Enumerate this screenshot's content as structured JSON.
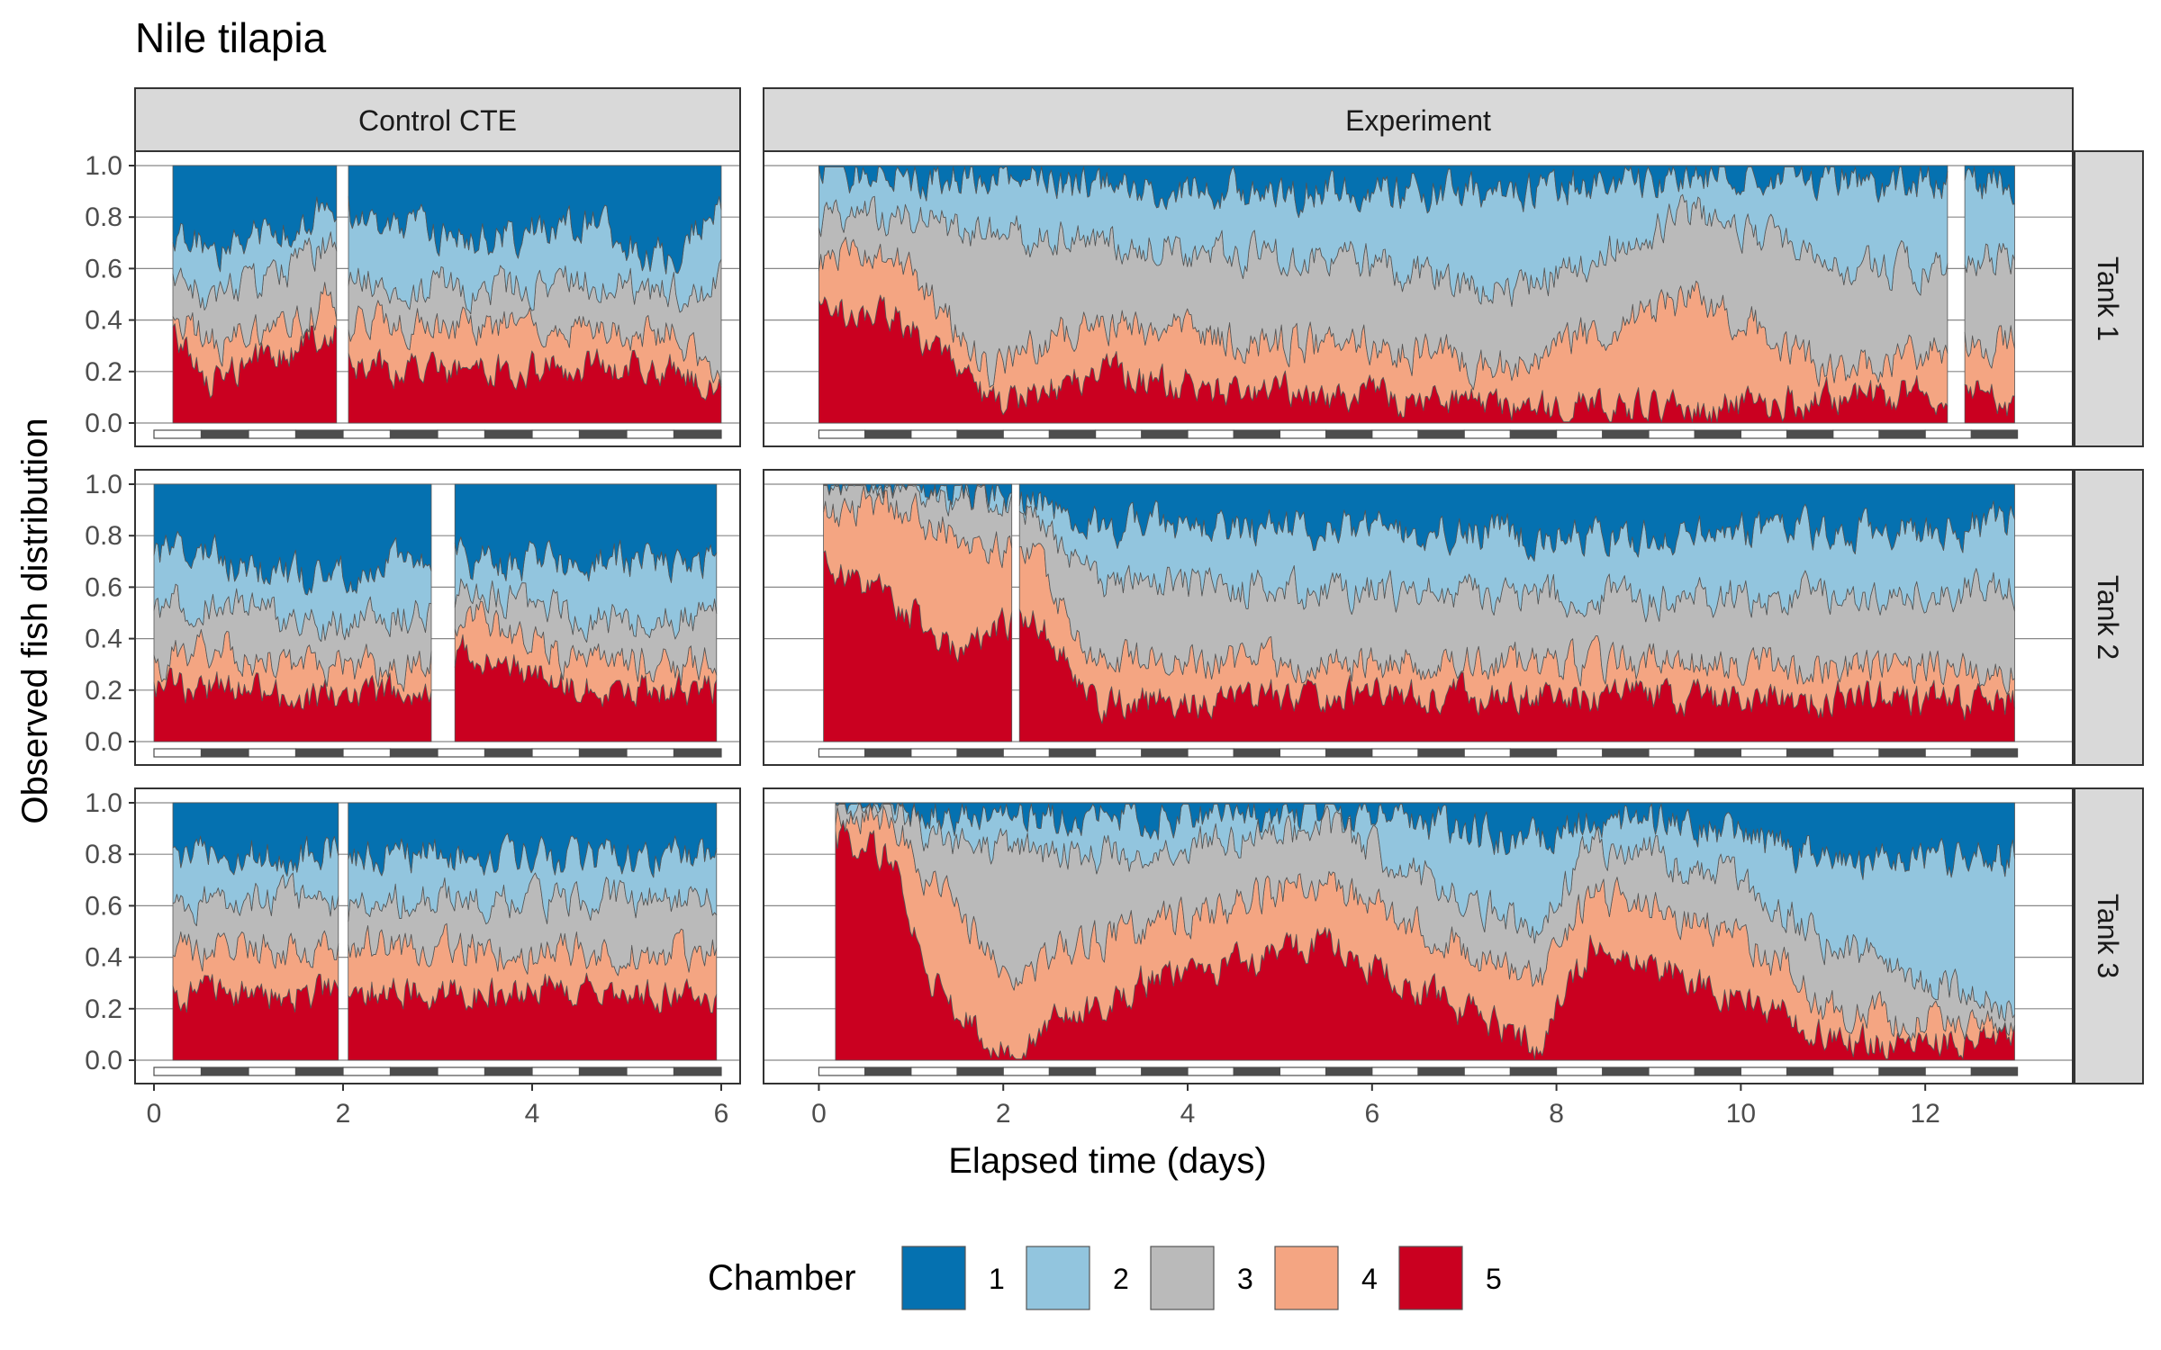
{
  "chart_data": {
    "type": "area",
    "stacked": true,
    "title": "Nile tilapia",
    "xlabel": "Elapsed time (days)",
    "ylabel": "Observed fish distribution",
    "ylim": [
      0,
      1
    ],
    "y_ticks": [
      "0.0",
      "0.2",
      "0.4",
      "0.6",
      "0.8",
      "1.0"
    ],
    "legend": {
      "title": "Chamber",
      "position": "bottom",
      "entries": [
        {
          "label": "1",
          "color": "#0571b0"
        },
        {
          "label": "2",
          "color": "#92c5de"
        },
        {
          "label": "3",
          "color": "#bababa"
        },
        {
          "label": "4",
          "color": "#f4a582"
        },
        {
          "label": "5",
          "color": "#ca0020"
        }
      ]
    },
    "columns": [
      {
        "label": "Control CTE",
        "xlim": [
          -0.2,
          6.2
        ],
        "x_ticks": [
          "0",
          "2",
          "4",
          "6"
        ],
        "x_tick_values": [
          0,
          2,
          4,
          6
        ],
        "light_dark_period_days": 0.5,
        "day_end": 6
      },
      {
        "label": "Experiment",
        "xlim": [
          -0.6,
          13.6
        ],
        "x_ticks": [
          "0",
          "2",
          "4",
          "6",
          "8",
          "10",
          "12"
        ],
        "x_tick_values": [
          0,
          2,
          4,
          6,
          8,
          10,
          12
        ],
        "light_dark_period_days": 0.5,
        "day_end": 13
      }
    ],
    "rows": [
      {
        "label": "Tank 1"
      },
      {
        "label": "Tank 2"
      },
      {
        "label": "Tank 3"
      }
    ],
    "panels": [
      {
        "row": 0,
        "col": 0,
        "t_start": 0.2,
        "t_end": 6.0,
        "gaps": [
          [
            1.94,
            2.04
          ]
        ],
        "cumulative_bounds_mean": [
          0.25,
          0.42,
          0.58,
          0.75
        ],
        "keyframes": [
          {
            "t": 0.2,
            "s": [
              0.35,
              0.45,
              0.55,
              0.72
            ]
          },
          {
            "t": 0.6,
            "s": [
              0.17,
              0.3,
              0.5,
              0.67
            ]
          },
          {
            "t": 1.5,
            "s": [
              0.28,
              0.38,
              0.6,
              0.78
            ]
          },
          {
            "t": 1.9,
            "s": [
              0.38,
              0.5,
              0.72,
              0.84
            ]
          },
          {
            "t": 2.1,
            "s": [
              0.22,
              0.38,
              0.55,
              0.77
            ]
          },
          {
            "t": 3.5,
            "s": [
              0.2,
              0.36,
              0.52,
              0.72
            ]
          },
          {
            "t": 4.6,
            "s": [
              0.22,
              0.38,
              0.55,
              0.77
            ]
          },
          {
            "t": 5.5,
            "s": [
              0.2,
              0.35,
              0.5,
              0.62
            ]
          },
          {
            "t": 5.95,
            "s": [
              0.12,
              0.2,
              0.55,
              0.88
            ]
          }
        ]
      },
      {
        "row": 0,
        "col": 1,
        "t_start": 0.0,
        "t_end": 12.97,
        "gaps": [
          [
            12.25,
            12.42
          ]
        ],
        "cumulative_bounds_mean": [
          0.13,
          0.33,
          0.68,
          0.93
        ],
        "keyframes": [
          {
            "t": 0.0,
            "s": [
              0.45,
              0.65,
              0.8,
              0.98
            ]
          },
          {
            "t": 0.9,
            "s": [
              0.4,
              0.62,
              0.8,
              0.95
            ]
          },
          {
            "t": 1.9,
            "s": [
              0.07,
              0.2,
              0.72,
              0.96
            ]
          },
          {
            "t": 3.0,
            "s": [
              0.2,
              0.4,
              0.72,
              0.92
            ]
          },
          {
            "t": 4.5,
            "s": [
              0.12,
              0.32,
              0.65,
              0.9
            ]
          },
          {
            "t": 6.0,
            "s": [
              0.1,
              0.3,
              0.62,
              0.9
            ]
          },
          {
            "t": 7.5,
            "s": [
              0.07,
              0.22,
              0.5,
              0.9
            ]
          },
          {
            "t": 9.5,
            "s": [
              0.05,
              0.5,
              0.82,
              0.97
            ]
          },
          {
            "t": 11.0,
            "s": [
              0.1,
              0.2,
              0.6,
              0.95
            ]
          },
          {
            "t": 12.2,
            "s": [
              0.12,
              0.3,
              0.6,
              0.93
            ]
          },
          {
            "t": 12.97,
            "s": [
              0.08,
              0.32,
              0.65,
              0.93
            ]
          }
        ]
      },
      {
        "row": 1,
        "col": 0,
        "t_start": 0.0,
        "t_end": 5.95,
        "gaps": [
          [
            2.95,
            3.18
          ]
        ],
        "cumulative_bounds_mean": [
          0.2,
          0.32,
          0.48,
          0.7
        ],
        "keyframes": [
          {
            "t": 0.0,
            "s": [
              0.2,
              0.3,
              0.5,
              0.72
            ]
          },
          {
            "t": 0.5,
            "s": [
              0.22,
              0.38,
              0.55,
              0.72
            ]
          },
          {
            "t": 1.8,
            "s": [
              0.18,
              0.28,
              0.45,
              0.62
            ]
          },
          {
            "t": 2.9,
            "s": [
              0.2,
              0.3,
              0.5,
              0.72
            ]
          },
          {
            "t": 3.25,
            "s": [
              0.35,
              0.5,
              0.6,
              0.7
            ]
          },
          {
            "t": 4.5,
            "s": [
              0.2,
              0.3,
              0.48,
              0.7
            ]
          },
          {
            "t": 5.95,
            "s": [
              0.2,
              0.3,
              0.48,
              0.7
            ]
          }
        ]
      },
      {
        "row": 1,
        "col": 1,
        "t_start": 0.05,
        "t_end": 12.97,
        "gaps": [
          [
            2.1,
            2.16
          ]
        ],
        "cumulative_bounds_mean": [
          0.18,
          0.3,
          0.6,
          0.82
        ],
        "keyframes": [
          {
            "t": 0.05,
            "s": [
              0.7,
              0.88,
              0.96,
              0.98
            ]
          },
          {
            "t": 0.8,
            "s": [
              0.55,
              0.92,
              0.98,
              1.0
            ]
          },
          {
            "t": 1.5,
            "s": [
              0.35,
              0.8,
              0.93,
              0.96
            ]
          },
          {
            "t": 2.3,
            "s": [
              0.5,
              0.75,
              0.9,
              0.94
            ]
          },
          {
            "t": 3.0,
            "s": [
              0.15,
              0.32,
              0.62,
              0.84
            ]
          },
          {
            "t": 6.0,
            "s": [
              0.18,
              0.3,
              0.58,
              0.82
            ]
          },
          {
            "t": 9.0,
            "s": [
              0.18,
              0.3,
              0.55,
              0.8
            ]
          },
          {
            "t": 12.97,
            "s": [
              0.15,
              0.28,
              0.6,
              0.84
            ]
          }
        ]
      },
      {
        "row": 2,
        "col": 0,
        "t_start": 0.2,
        "t_end": 5.95,
        "gaps": [
          [
            1.96,
            2.04
          ]
        ],
        "cumulative_bounds_mean": [
          0.25,
          0.42,
          0.62,
          0.8
        ],
        "keyframes": [
          {
            "t": 0.2,
            "s": [
              0.25,
              0.42,
              0.62,
              0.8
            ]
          },
          {
            "t": 1.9,
            "s": [
              0.27,
              0.44,
              0.62,
              0.82
            ]
          },
          {
            "t": 2.1,
            "s": [
              0.28,
              0.45,
              0.62,
              0.8
            ]
          },
          {
            "t": 4.0,
            "s": [
              0.27,
              0.42,
              0.62,
              0.8
            ]
          },
          {
            "t": 5.95,
            "s": [
              0.25,
              0.42,
              0.62,
              0.78
            ]
          }
        ]
      },
      {
        "row": 2,
        "col": 1,
        "t_start": 0.18,
        "t_end": 12.97,
        "gaps": [],
        "cumulative_bounds_mean": [
          0.28,
          0.55,
          0.78,
          0.92
        ],
        "keyframes": [
          {
            "t": 0.18,
            "s": [
              0.85,
              0.95,
              0.98,
              0.99
            ]
          },
          {
            "t": 0.8,
            "s": [
              0.8,
              0.95,
              0.98,
              0.99
            ]
          },
          {
            "t": 1.2,
            "s": [
              0.3,
              0.7,
              0.88,
              0.96
            ]
          },
          {
            "t": 2.0,
            "s": [
              0.05,
              0.35,
              0.8,
              0.95
            ]
          },
          {
            "t": 3.5,
            "s": [
              0.3,
              0.5,
              0.8,
              0.95
            ]
          },
          {
            "t": 5.5,
            "s": [
              0.45,
              0.7,
              0.9,
              0.96
            ]
          },
          {
            "t": 7.8,
            "s": [
              0.05,
              0.3,
              0.5,
              0.85
            ]
          },
          {
            "t": 8.4,
            "s": [
              0.45,
              0.65,
              0.85,
              0.95
            ]
          },
          {
            "t": 10.0,
            "s": [
              0.25,
              0.5,
              0.7,
              0.88
            ]
          },
          {
            "t": 11.0,
            "s": [
              0.08,
              0.2,
              0.45,
              0.75
            ]
          },
          {
            "t": 12.97,
            "s": [
              0.05,
              0.1,
              0.2,
              0.8
            ]
          }
        ]
      }
    ]
  }
}
